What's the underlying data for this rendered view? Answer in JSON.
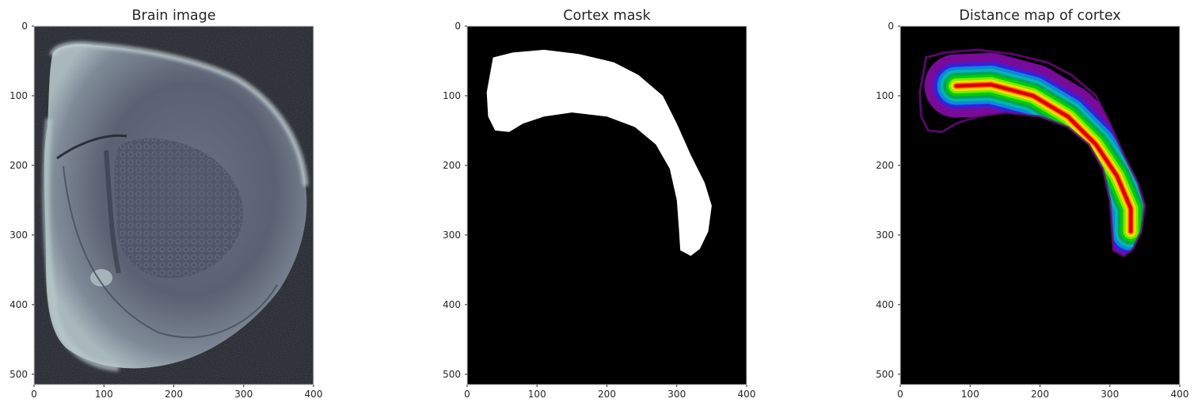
{
  "chart_data": [
    {
      "type": "image",
      "title": "Brain image",
      "colormap": "bone",
      "xlim": [
        0,
        400
      ],
      "ylim": [
        0,
        515
      ],
      "xticks": [
        0,
        100,
        200,
        300,
        400
      ],
      "yticks": [
        0,
        100,
        200,
        300,
        400,
        500
      ],
      "grid": false
    },
    {
      "type": "image",
      "title": "Cortex mask",
      "colormap": "gray",
      "xlim": [
        0,
        400
      ],
      "ylim": [
        0,
        515
      ],
      "xticks": [
        0,
        100,
        200,
        300,
        400
      ],
      "yticks": [
        0,
        100,
        200,
        300,
        400,
        500
      ],
      "grid": false,
      "mask_outline": [
        [
          37,
          45
        ],
        [
          65,
          38
        ],
        [
          110,
          34
        ],
        [
          160,
          40
        ],
        [
          210,
          52
        ],
        [
          245,
          70
        ],
        [
          280,
          100
        ],
        [
          300,
          140
        ],
        [
          320,
          185
        ],
        [
          340,
          225
        ],
        [
          350,
          258
        ],
        [
          345,
          295
        ],
        [
          333,
          320
        ],
        [
          320,
          330
        ],
        [
          305,
          322
        ],
        [
          303,
          290
        ],
        [
          300,
          250
        ],
        [
          290,
          205
        ],
        [
          270,
          170
        ],
        [
          240,
          145
        ],
        [
          200,
          130
        ],
        [
          150,
          124
        ],
        [
          110,
          130
        ],
        [
          80,
          140
        ],
        [
          60,
          152
        ],
        [
          40,
          150
        ],
        [
          30,
          130
        ],
        [
          28,
          95
        ]
      ]
    },
    {
      "type": "heatmap",
      "title": "Distance map of cortex",
      "colormap": "nipy_spectral",
      "xlim": [
        0,
        400
      ],
      "ylim": [
        0,
        515
      ],
      "xticks": [
        0,
        100,
        200,
        300,
        400
      ],
      "yticks": [
        0,
        100,
        200,
        300,
        400,
        500
      ],
      "grid": false,
      "core_path": [
        [
          80,
          86
        ],
        [
          130,
          84
        ],
        [
          190,
          100
        ],
        [
          240,
          130
        ],
        [
          280,
          170
        ],
        [
          310,
          215
        ],
        [
          330,
          262
        ],
        [
          330,
          295
        ]
      ]
    }
  ]
}
